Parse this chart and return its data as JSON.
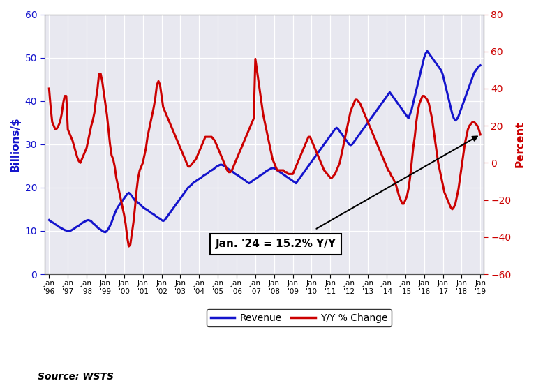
{
  "ylabel_left": "Billions/$",
  "ylabel_right": "Percent",
  "source_text": "Source: WSTS",
  "annotation_text": "Jan. '24 = 15.2% Y/Y",
  "left_color": "#1414CC",
  "right_color": "#CC0000",
  "background_color": "#FFFFFF",
  "plot_bg_color": "#E8E8F0",
  "ylim_left": [
    0,
    60
  ],
  "ylim_right": [
    -60,
    80
  ],
  "legend_revenue": "Revenue",
  "legend_yoy": "Y/Y % Change",
  "revenue_monthly": [
    12.5,
    12.2,
    12.0,
    11.8,
    11.5,
    11.3,
    11.0,
    10.8,
    10.6,
    10.4,
    10.2,
    10.1,
    10.0,
    10.0,
    10.1,
    10.3,
    10.5,
    10.8,
    11.0,
    11.2,
    11.5,
    11.8,
    12.0,
    12.2,
    12.4,
    12.5,
    12.4,
    12.2,
    11.8,
    11.5,
    11.2,
    10.8,
    10.5,
    10.3,
    10.0,
    9.8,
    9.7,
    10.0,
    10.5,
    11.2,
    12.0,
    13.0,
    14.0,
    14.8,
    15.5,
    16.0,
    16.5,
    17.0,
    17.5,
    18.0,
    18.5,
    18.8,
    18.5,
    18.0,
    17.5,
    17.0,
    16.8,
    16.5,
    16.2,
    15.8,
    15.5,
    15.2,
    15.0,
    14.8,
    14.5,
    14.2,
    14.0,
    13.8,
    13.5,
    13.2,
    13.0,
    12.8,
    12.5,
    12.3,
    12.5,
    13.0,
    13.5,
    14.0,
    14.5,
    15.0,
    15.5,
    16.0,
    16.5,
    17.0,
    17.5,
    18.0,
    18.5,
    19.0,
    19.5,
    20.0,
    20.3,
    20.6,
    21.0,
    21.3,
    21.5,
    21.8,
    22.0,
    22.2,
    22.5,
    22.8,
    23.0,
    23.2,
    23.5,
    23.8,
    24.0,
    24.2,
    24.5,
    24.8,
    25.0,
    25.2,
    25.3,
    25.2,
    25.0,
    24.8,
    24.5,
    24.2,
    24.0,
    23.8,
    23.5,
    23.2,
    23.0,
    22.8,
    22.5,
    22.3,
    22.0,
    21.8,
    21.5,
    21.2,
    21.0,
    21.2,
    21.5,
    21.8,
    22.0,
    22.2,
    22.5,
    22.8,
    23.0,
    23.2,
    23.5,
    23.8,
    24.0,
    24.2,
    24.4,
    24.5,
    24.5,
    24.3,
    24.0,
    23.8,
    23.5,
    23.3,
    23.0,
    22.8,
    22.5,
    22.3,
    22.0,
    21.8,
    21.5,
    21.3,
    21.0,
    21.5,
    22.0,
    22.5,
    23.0,
    23.5,
    24.0,
    24.5,
    25.0,
    25.5,
    26.0,
    26.5,
    27.0,
    27.5,
    28.0,
    28.5,
    29.0,
    29.5,
    30.0,
    30.5,
    31.0,
    31.5,
    32.0,
    32.5,
    33.0,
    33.5,
    33.8,
    33.5,
    33.0,
    32.5,
    32.0,
    31.5,
    31.0,
    30.5,
    30.0,
    29.8,
    30.0,
    30.5,
    31.0,
    31.5,
    32.0,
    32.5,
    33.0,
    33.5,
    34.0,
    34.5,
    35.0,
    35.5,
    36.0,
    36.5,
    37.0,
    37.5,
    38.0,
    38.5,
    39.0,
    39.5,
    40.0,
    40.5,
    41.0,
    41.5,
    42.0,
    41.5,
    41.0,
    40.5,
    40.0,
    39.5,
    39.0,
    38.5,
    38.0,
    37.5,
    37.0,
    36.5,
    36.0,
    37.0,
    38.0,
    39.5,
    41.0,
    42.5,
    44.0,
    45.5,
    47.0,
    48.5,
    50.0,
    51.0,
    51.5,
    51.0,
    50.5,
    50.0,
    49.5,
    49.0,
    48.5,
    48.0,
    47.5,
    47.0,
    46.0,
    44.5,
    43.0,
    41.5,
    40.0,
    38.5,
    37.0,
    36.0,
    35.5,
    35.8,
    36.5,
    37.5,
    38.5,
    39.5,
    40.5,
    41.5,
    42.5,
    43.5,
    44.5,
    45.5,
    46.5,
    47.0,
    47.5,
    48.0,
    48.2
  ],
  "yoy_monthly": [
    40.0,
    30.0,
    22.0,
    20.0,
    18.0,
    18.5,
    20.0,
    22.0,
    26.0,
    32.0,
    36.0,
    36.0,
    18.0,
    16.0,
    14.0,
    12.0,
    9.0,
    6.0,
    3.0,
    1.0,
    0.0,
    2.0,
    4.0,
    6.0,
    8.0,
    12.0,
    16.0,
    20.0,
    23.0,
    27.0,
    34.0,
    40.0,
    48.0,
    48.0,
    44.0,
    38.0,
    32.0,
    26.0,
    18.0,
    10.0,
    4.0,
    2.0,
    -2.0,
    -8.0,
    -12.0,
    -16.0,
    -20.0,
    -24.0,
    -28.0,
    -33.0,
    -40.0,
    -45.0,
    -44.0,
    -38.0,
    -32.0,
    -24.0,
    -15.0,
    -8.0,
    -4.0,
    -2.0,
    0.0,
    4.0,
    8.0,
    14.0,
    18.0,
    22.0,
    26.0,
    30.0,
    35.0,
    42.0,
    44.0,
    42.0,
    36.0,
    30.0,
    28.0,
    26.0,
    24.0,
    22.0,
    20.0,
    18.0,
    16.0,
    14.0,
    12.0,
    10.0,
    8.0,
    6.0,
    4.0,
    2.0,
    0.0,
    -2.0,
    -2.0,
    -1.0,
    0.0,
    1.0,
    2.0,
    4.0,
    6.0,
    8.0,
    10.0,
    12.0,
    14.0,
    14.0,
    14.0,
    14.0,
    14.0,
    13.0,
    12.0,
    10.0,
    8.0,
    6.0,
    4.0,
    2.0,
    0.0,
    -2.0,
    -4.0,
    -5.0,
    -5.0,
    -4.0,
    -2.0,
    0.0,
    2.0,
    4.0,
    6.0,
    8.0,
    10.0,
    12.0,
    14.0,
    16.0,
    18.0,
    20.0,
    22.0,
    24.0,
    56.0,
    50.0,
    44.0,
    38.0,
    32.0,
    26.0,
    22.0,
    18.0,
    14.0,
    10.0,
    6.0,
    2.0,
    0.0,
    -2.0,
    -4.0,
    -4.0,
    -4.0,
    -4.0,
    -4.0,
    -5.0,
    -5.0,
    -6.0,
    -6.0,
    -6.0,
    -6.0,
    -4.0,
    -2.0,
    0.0,
    2.0,
    4.0,
    6.0,
    8.0,
    10.0,
    12.0,
    14.0,
    14.0,
    12.0,
    10.0,
    8.0,
    6.0,
    4.0,
    2.0,
    0.0,
    -2.0,
    -4.0,
    -5.0,
    -6.0,
    -7.0,
    -8.0,
    -8.0,
    -7.0,
    -6.0,
    -4.0,
    -2.0,
    0.0,
    4.0,
    8.0,
    12.0,
    16.0,
    20.0,
    24.0,
    28.0,
    30.0,
    32.0,
    34.0,
    34.0,
    33.0,
    32.0,
    30.0,
    28.0,
    26.0,
    24.0,
    22.0,
    20.0,
    18.0,
    16.0,
    14.0,
    12.0,
    10.0,
    8.0,
    6.0,
    4.0,
    2.0,
    0.0,
    -2.0,
    -4.0,
    -5.0,
    -7.0,
    -8.0,
    -10.0,
    -12.0,
    -15.0,
    -18.0,
    -20.0,
    -22.0,
    -22.0,
    -20.0,
    -18.0,
    -14.0,
    -8.0,
    0.0,
    8.0,
    14.0,
    22.0,
    28.0,
    32.0,
    34.0,
    36.0,
    36.0,
    35.0,
    34.0,
    32.0,
    28.0,
    24.0,
    18.0,
    12.0,
    6.0,
    0.0,
    -4.0,
    -8.0,
    -12.0,
    -16.0,
    -18.0,
    -20.0,
    -22.0,
    -24.0,
    -25.0,
    -24.0,
    -22.0,
    -18.0,
    -14.0,
    -8.0,
    -2.0,
    4.0,
    10.0,
    14.0,
    18.0,
    20.0,
    21.0,
    22.0,
    22.0,
    21.0,
    20.0,
    18.0,
    15.2
  ]
}
